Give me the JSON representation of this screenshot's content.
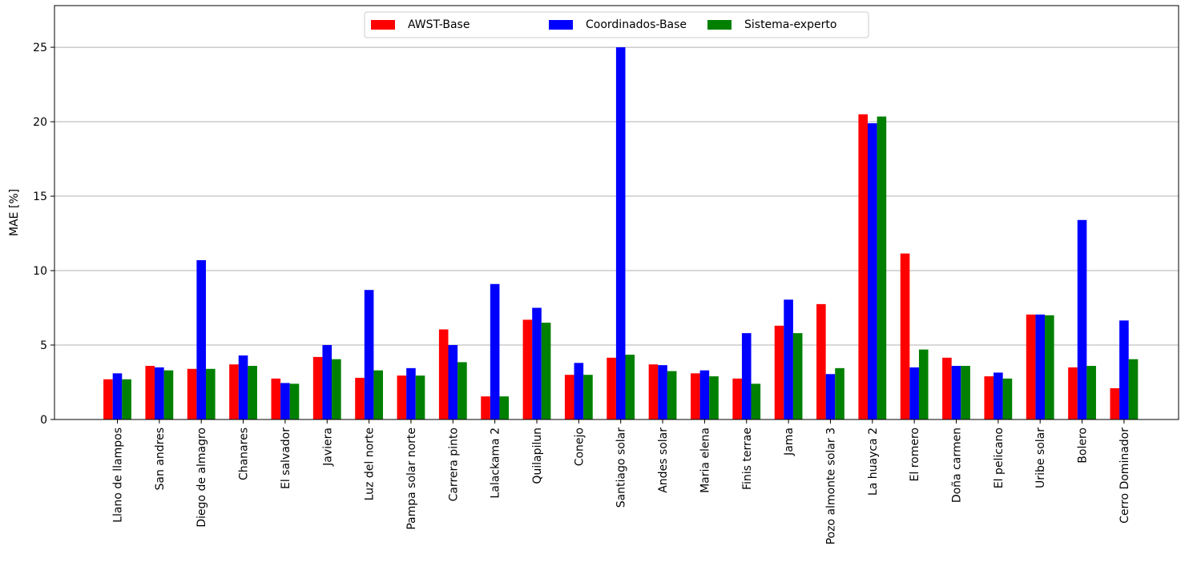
{
  "chart_data": {
    "type": "bar",
    "ylabel": "MAE [%]",
    "xlabel": "",
    "ylim": [
      0,
      27.8
    ],
    "yticks": [
      0,
      5,
      10,
      15,
      20,
      25
    ],
    "grid": "y",
    "legend_position": "top-center",
    "categories": [
      "Llano de llampos",
      "San andres",
      "Diego de almagro",
      "Chanares",
      "El salvador",
      "Javiera",
      "Luz del norte",
      "Pampa solar norte",
      "Carrera pinto",
      "Lalackama 2",
      "Quilapilun",
      "Conejo",
      "Santiago solar",
      "Andes solar",
      "Maria elena",
      "Finis terrae",
      "Jama",
      "Pozo almonte solar 3",
      "La huayca 2",
      "El romero",
      "Doña carmen",
      "El pelicano",
      "Uribe solar",
      "Bolero",
      "Cerro Dominador"
    ],
    "series": [
      {
        "name": "AWST-Base",
        "color": "#ff0000",
        "values": [
          2.7,
          3.6,
          3.4,
          3.7,
          2.75,
          4.2,
          2.8,
          2.95,
          6.05,
          1.55,
          6.7,
          3.0,
          4.15,
          3.7,
          3.1,
          2.75,
          6.3,
          7.75,
          20.5,
          11.15,
          4.15,
          2.9,
          7.05,
          3.5,
          2.1
        ]
      },
      {
        "name": "Coordinados-Base",
        "color": "#0000ff",
        "values": [
          3.1,
          3.5,
          10.7,
          4.3,
          2.45,
          5.0,
          8.7,
          3.45,
          5.0,
          9.1,
          7.5,
          3.8,
          25.0,
          3.65,
          3.3,
          5.8,
          8.05,
          3.05,
          19.9,
          3.5,
          3.6,
          3.15,
          7.05,
          13.4,
          6.65
        ]
      },
      {
        "name": "Sistema-experto",
        "color": "#008000",
        "values": [
          2.7,
          3.3,
          3.4,
          3.6,
          2.4,
          4.05,
          3.3,
          2.95,
          3.85,
          1.55,
          6.5,
          3.0,
          4.35,
          3.25,
          2.9,
          2.4,
          5.8,
          3.45,
          20.35,
          4.7,
          3.6,
          2.75,
          7.0,
          3.6,
          4.05
        ]
      }
    ]
  }
}
